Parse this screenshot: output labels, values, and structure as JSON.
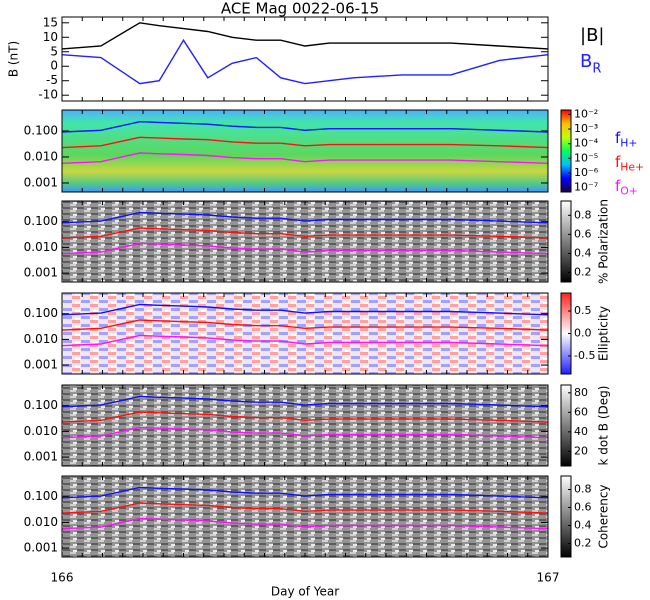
{
  "chart_data": [
    {
      "type": "line",
      "title": "ACE Mag 0022-06-15",
      "ylabel": "B (nT)",
      "x": [
        166,
        166.08,
        166.16,
        166.2,
        166.25,
        166.3,
        166.35,
        166.4,
        166.45,
        166.5,
        166.55,
        166.6,
        166.7,
        166.8,
        166.9,
        167
      ],
      "series": [
        {
          "name": "|B|",
          "color": "#000000",
          "values": [
            6,
            7,
            15,
            14,
            13,
            12,
            10,
            9,
            9,
            7,
            8,
            8,
            8,
            8,
            7,
            6
          ]
        },
        {
          "name": "BR",
          "color": "#2020ff",
          "values": [
            4,
            3,
            -6,
            -5,
            9,
            -4,
            1,
            3,
            -4,
            -6,
            -5,
            -4,
            -3,
            -3,
            2,
            4
          ]
        }
      ],
      "xlim": [
        166,
        167
      ],
      "ylim": [
        -12,
        17
      ],
      "yticks": [
        -10,
        -5,
        0,
        5,
        10,
        15
      ],
      "legend": true
    },
    {
      "type": "spectrogram",
      "log": true,
      "x": [
        166,
        166.08,
        166.16,
        166.2,
        166.25,
        166.3,
        166.35,
        166.4,
        166.45,
        166.5,
        166.55,
        166.6,
        166.7,
        166.8,
        166.9,
        167
      ],
      "series": [
        {
          "name": "fH+",
          "color": "#1010ff",
          "values": [
            0.091,
            0.106,
            0.228,
            0.213,
            0.198,
            0.182,
            0.152,
            0.137,
            0.137,
            0.106,
            0.122,
            0.122,
            0.122,
            0.122,
            0.106,
            0.091
          ]
        },
        {
          "name": "fHe+",
          "color": "#ff1010",
          "values": [
            0.023,
            0.027,
            0.057,
            0.053,
            0.049,
            0.046,
            0.038,
            0.034,
            0.034,
            0.027,
            0.03,
            0.03,
            0.03,
            0.03,
            0.027,
            0.023
          ]
        },
        {
          "name": "fO+",
          "color": "#ff10ff",
          "values": [
            0.0057,
            0.0066,
            0.0143,
            0.0133,
            0.0124,
            0.0114,
            0.0095,
            0.0086,
            0.0086,
            0.0066,
            0.0076,
            0.0076,
            0.0076,
            0.0076,
            0.0066,
            0.0057
          ]
        }
      ],
      "xlim": [
        166,
        167
      ],
      "ylim": [
        0.00045,
        0.64
      ],
      "yticks": [
        {
          "value": 0.001,
          "label": "0.001"
        },
        {
          "value": 0.01,
          "label": "0.010"
        },
        {
          "value": 0.1,
          "label": "0.100"
        }
      ],
      "legend": true,
      "colorbar": {
        "log": true,
        "lim": [
          5e-08,
          0.02
        ],
        "colors": [
          "#200040",
          "#0000ff",
          "#00c0ff",
          "#00ff60",
          "#c0ff00",
          "#ffc000",
          "#ff0000"
        ],
        "ticks": [
          {
            "value": 1e-07,
            "label": "10⁻⁷"
          },
          {
            "value": 1e-06,
            "label": "10⁻⁶"
          },
          {
            "value": 1e-05,
            "label": "10⁻⁵"
          },
          {
            "value": 0.0001,
            "label": "10⁻⁴"
          },
          {
            "value": 0.001,
            "label": "10⁻³"
          },
          {
            "value": 0.01,
            "label": "10⁻²"
          }
        ]
      }
    },
    {
      "type": "spectrogram",
      "log": true,
      "x": [
        166,
        166.08,
        166.16,
        166.2,
        166.25,
        166.3,
        166.35,
        166.4,
        166.45,
        166.5,
        166.55,
        166.6,
        166.7,
        166.8,
        166.9,
        167
      ],
      "series": [
        {
          "name": "fH+",
          "color": "#1010ff",
          "values": [
            0.091,
            0.106,
            0.228,
            0.213,
            0.198,
            0.182,
            0.152,
            0.137,
            0.137,
            0.106,
            0.122,
            0.122,
            0.122,
            0.122,
            0.106,
            0.091
          ]
        },
        {
          "name": "fHe+",
          "color": "#ff1010",
          "values": [
            0.023,
            0.027,
            0.057,
            0.053,
            0.049,
            0.046,
            0.038,
            0.034,
            0.034,
            0.027,
            0.03,
            0.03,
            0.03,
            0.03,
            0.027,
            0.023
          ]
        },
        {
          "name": "fO+",
          "color": "#ff10ff",
          "values": [
            0.0057,
            0.0066,
            0.0143,
            0.0133,
            0.0124,
            0.0114,
            0.0095,
            0.0086,
            0.0086,
            0.0066,
            0.0076,
            0.0076,
            0.0076,
            0.0076,
            0.0066,
            0.0057
          ]
        }
      ],
      "xlim": [
        166,
        167
      ],
      "ylim": [
        0.00045,
        0.64
      ],
      "yticks": [
        {
          "value": 0.001,
          "label": "0.001"
        },
        {
          "value": 0.01,
          "label": "0.010"
        },
        {
          "value": 0.1,
          "label": "0.100"
        }
      ],
      "colorbar": {
        "label": "% Polarization",
        "lim": [
          0.1,
          0.95
        ],
        "colors": [
          "#000000",
          "#ffffff"
        ],
        "ticks": [
          0.2,
          0.4,
          0.6,
          0.8
        ]
      }
    },
    {
      "type": "spectrogram",
      "log": true,
      "x": [
        166,
        166.08,
        166.16,
        166.2,
        166.25,
        166.3,
        166.35,
        166.4,
        166.45,
        166.5,
        166.55,
        166.6,
        166.7,
        166.8,
        166.9,
        167
      ],
      "series": [
        {
          "name": "fH+",
          "color": "#1010ff",
          "values": [
            0.091,
            0.106,
            0.228,
            0.213,
            0.198,
            0.182,
            0.152,
            0.137,
            0.137,
            0.106,
            0.122,
            0.122,
            0.122,
            0.122,
            0.106,
            0.091
          ]
        },
        {
          "name": "fHe+",
          "color": "#ff1010",
          "values": [
            0.023,
            0.027,
            0.057,
            0.053,
            0.049,
            0.046,
            0.038,
            0.034,
            0.034,
            0.027,
            0.03,
            0.03,
            0.03,
            0.03,
            0.027,
            0.023
          ]
        },
        {
          "name": "fO+",
          "color": "#ff10ff",
          "values": [
            0.0057,
            0.0066,
            0.0143,
            0.0133,
            0.0124,
            0.0114,
            0.0095,
            0.0086,
            0.0086,
            0.0066,
            0.0076,
            0.0076,
            0.0076,
            0.0076,
            0.0066,
            0.0057
          ]
        }
      ],
      "xlim": [
        166,
        167
      ],
      "ylim": [
        0.00045,
        0.64
      ],
      "yticks": [
        {
          "value": 0.001,
          "label": "0.001"
        },
        {
          "value": 0.01,
          "label": "0.010"
        },
        {
          "value": 0.1,
          "label": "0.100"
        }
      ],
      "colorbar": {
        "label": "Ellipticity",
        "lim": [
          -0.9,
          0.9
        ],
        "colors": [
          "#2020ff",
          "#ffffff",
          "#ff2020"
        ],
        "ticks": [
          -0.5,
          {
            "value": 0,
            "label": "0.0"
          },
          0.5
        ]
      }
    },
    {
      "type": "spectrogram",
      "log": true,
      "x": [
        166,
        166.08,
        166.16,
        166.2,
        166.25,
        166.3,
        166.35,
        166.4,
        166.45,
        166.5,
        166.55,
        166.6,
        166.7,
        166.8,
        166.9,
        167
      ],
      "series": [
        {
          "name": "fH+",
          "color": "#1010ff",
          "values": [
            0.091,
            0.106,
            0.228,
            0.213,
            0.198,
            0.182,
            0.152,
            0.137,
            0.137,
            0.106,
            0.122,
            0.122,
            0.122,
            0.122,
            0.106,
            0.091
          ]
        },
        {
          "name": "fHe+",
          "color": "#ff1010",
          "values": [
            0.023,
            0.027,
            0.057,
            0.053,
            0.049,
            0.046,
            0.038,
            0.034,
            0.034,
            0.027,
            0.03,
            0.03,
            0.03,
            0.03,
            0.027,
            0.023
          ]
        },
        {
          "name": "fO+",
          "color": "#ff10ff",
          "values": [
            0.0057,
            0.0066,
            0.0143,
            0.0133,
            0.0124,
            0.0114,
            0.0095,
            0.0086,
            0.0086,
            0.0066,
            0.0076,
            0.0076,
            0.0076,
            0.0076,
            0.0066,
            0.0057
          ]
        }
      ],
      "xlim": [
        166,
        167
      ],
      "ylim": [
        0.00045,
        0.64
      ],
      "yticks": [
        {
          "value": 0.001,
          "label": "0.001"
        },
        {
          "value": 0.01,
          "label": "0.010"
        },
        {
          "value": 0.1,
          "label": "0.100"
        }
      ],
      "colorbar": {
        "label": "k dot B (Deg)",
        "lim": [
          5,
          88
        ],
        "colors": [
          "#000000",
          "#ffffff"
        ],
        "ticks": [
          20,
          40,
          60,
          80
        ]
      }
    },
    {
      "type": "spectrogram",
      "log": true,
      "xlabel": "Day of Year",
      "x": [
        166,
        166.08,
        166.16,
        166.2,
        166.25,
        166.3,
        166.35,
        166.4,
        166.45,
        166.5,
        166.55,
        166.6,
        166.7,
        166.8,
        166.9,
        167
      ],
      "series": [
        {
          "name": "fH+",
          "color": "#1010ff",
          "values": [
            0.091,
            0.106,
            0.228,
            0.213,
            0.198,
            0.182,
            0.152,
            0.137,
            0.137,
            0.106,
            0.122,
            0.122,
            0.122,
            0.122,
            0.106,
            0.091
          ]
        },
        {
          "name": "fHe+",
          "color": "#ff1010",
          "values": [
            0.023,
            0.027,
            0.057,
            0.053,
            0.049,
            0.046,
            0.038,
            0.034,
            0.034,
            0.027,
            0.03,
            0.03,
            0.03,
            0.03,
            0.027,
            0.023
          ]
        },
        {
          "name": "fO+",
          "color": "#ff10ff",
          "values": [
            0.0057,
            0.0066,
            0.0143,
            0.0133,
            0.0124,
            0.0114,
            0.0095,
            0.0086,
            0.0086,
            0.0066,
            0.0076,
            0.0076,
            0.0076,
            0.0076,
            0.0066,
            0.0057
          ]
        }
      ],
      "xlim": [
        166,
        167
      ],
      "xticks": [
        166,
        167
      ],
      "ylim": [
        0.00045,
        0.64
      ],
      "yticks": [
        {
          "value": 0.001,
          "label": "0.001"
        },
        {
          "value": 0.01,
          "label": "0.010"
        },
        {
          "value": 0.1,
          "label": "0.100"
        }
      ],
      "colorbar": {
        "label": "Coherency",
        "lim": [
          0.05,
          0.95
        ],
        "colors": [
          "#000000",
          "#ffffff"
        ],
        "ticks": [
          0.2,
          0.4,
          0.6,
          0.8
        ]
      }
    }
  ]
}
